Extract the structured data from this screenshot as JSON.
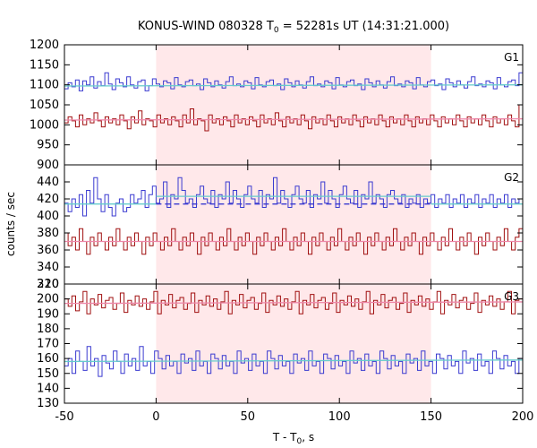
{
  "chart_data": {
    "type": "line",
    "title": "KONUS-WIND 080328 T",
    "title_sub": "0",
    "title_rest": " = 52281s UT (14:31:21.000)",
    "xlabel": "T - T",
    "xlabel_sub": "0",
    "xlabel_rest": ", s",
    "ylabel": "counts / sec",
    "xlim": [
      -50,
      200
    ],
    "x_ticks": [
      -50,
      0,
      50,
      100,
      150,
      200
    ],
    "x_tick_labels": [
      "-50",
      "0",
      "50",
      "100",
      "150",
      "200"
    ],
    "shaded_interval": [
      0,
      150
    ],
    "colors": {
      "blue": "#3a3ad0",
      "red": "#a01010",
      "cyan": "#66cccc",
      "pink": "#ee88aa",
      "shade": "#ffe8ea"
    },
    "panels": [
      {
        "name": "G1",
        "ylim": [
          900,
          1200
        ],
        "y_ticks": [
          900,
          950,
          1000,
          1050,
          1100,
          1150,
          1200
        ],
        "y_tick_labels": [
          "900",
          "950",
          "1000",
          "1050",
          "1100",
          "1150",
          "1200"
        ],
        "series": [
          {
            "name": "G1 upper",
            "color": "blue",
            "background": [
              {
                "x": [
                  -50,
                  200
                ],
                "y": [
                  1097,
                  1100
                ]
              }
            ],
            "values": [
              1090,
              1105,
              1095,
              1112,
              1085,
              1110,
              1100,
              1120,
              1092,
              1108,
              1098,
              1130,
              1102,
              1088,
              1115,
              1105,
              1095,
              1120,
              1100,
              1092,
              1108,
              1112,
              1085,
              1098,
              1115,
              1102,
              1095,
              1110,
              1105,
              1090,
              1118,
              1100,
              1095,
              1108,
              1112,
              1098,
              1102,
              1088,
              1115,
              1105,
              1095,
              1110,
              1100,
              1092,
              1108,
              1120,
              1098,
              1102,
              1095,
              1110,
              1105,
              1090,
              1118,
              1100,
              1095,
              1108,
              1112,
              1098,
              1102,
              1088,
              1115,
              1105,
              1095,
              1110,
              1100,
              1092,
              1108,
              1120,
              1098,
              1102,
              1095,
              1110,
              1105,
              1090,
              1118,
              1100,
              1095,
              1108,
              1112,
              1098,
              1102,
              1088,
              1115,
              1105,
              1095,
              1110,
              1100,
              1092,
              1108,
              1120,
              1098,
              1102,
              1095,
              1110,
              1105,
              1090,
              1118,
              1100,
              1095,
              1108,
              1112,
              1098,
              1102,
              1088,
              1115,
              1105,
              1095,
              1110,
              1100,
              1092,
              1108,
              1120,
              1098,
              1102,
              1095,
              1110,
              1105,
              1090,
              1118,
              1100,
              1095,
              1108,
              1112,
              1098,
              1130
            ]
          },
          {
            "name": "G1 lower",
            "color": "red",
            "background": [
              {
                "x": [
                  -50,
                  200
                ],
                "y": [
                  1012,
                  1015
                ]
              }
            ],
            "values": [
              1005,
              1020,
              1010,
              995,
              1025,
              1000,
              1015,
              1005,
              1030,
              1010,
              995,
              1020,
              1005,
              1015,
              1000,
              1025,
              1010,
              990,
              1020,
              1005,
              1035,
              1000,
              1015,
              1010,
              995,
              1025,
              1005,
              1015,
              1000,
              1020,
              1010,
              995,
              1025,
              1005,
              1040,
              1000,
              1015,
              1010,
              985,
              1025,
              1005,
              1015,
              1000,
              1020,
              1010,
              995,
              1025,
              1005,
              1015,
              1000,
              1020,
              1010,
              995,
              1025,
              1005,
              1015,
              1000,
              1030,
              1010,
              995,
              1020,
              1005,
              1015,
              1000,
              1025,
              1010,
              990,
              1020,
              1005,
              1015,
              1000,
              1025,
              1010,
              995,
              1020,
              1005,
              1015,
              1000,
              1025,
              1010,
              995,
              1020,
              1005,
              1015,
              1000,
              1025,
              1010,
              995,
              1020,
              1005,
              1015,
              1000,
              1025,
              1010,
              995,
              1020,
              1005,
              1015,
              1000,
              1025,
              1010,
              995,
              1020,
              1005,
              1015,
              1000,
              1025,
              1010,
              995,
              1020,
              1005,
              1015,
              1000,
              1025,
              1010,
              995,
              1020,
              1005,
              1015,
              1000,
              1025,
              1010,
              995,
              1050
            ]
          }
        ]
      },
      {
        "name": "G2",
        "ylim": [
          320,
          460
        ],
        "y_ticks": [
          320,
          340,
          360,
          380,
          400,
          420,
          440
        ],
        "y_tick_labels": [
          "320",
          "340",
          "360",
          "380",
          "400",
          "420",
          "440"
        ],
        "series": [
          {
            "name": "G2 upper",
            "color": "blue",
            "background": [
              {
                "x": [
                  -50,
                  0
                ],
                "y": [
                  414,
                  414
                ]
              },
              {
                "x": [
                  0,
                  150
                ],
                "y": [
                  423,
                  423
                ]
              },
              {
                "x": [
                  150,
                  200
                ],
                "y": [
                  414,
                  414
                ]
              }
            ],
            "dashed_background": [
              {
                "x": [
                  0,
                  150
                ],
                "y": [
                  414,
                  414
                ]
              }
            ],
            "values": [
              415,
              405,
              420,
              410,
              425,
              400,
              430,
              415,
              445,
              420,
              405,
              425,
              410,
              400,
              415,
              420,
              405,
              410,
              425,
              415,
              420,
              430,
              410,
              425,
              435,
              415,
              420,
              440,
              410,
              425,
              420,
              445,
              430,
              415,
              420,
              410,
              425,
              435,
              420,
              415,
              430,
              410,
              425,
              420,
              440,
              415,
              430,
              420,
              410,
              425,
              435,
              420,
              415,
              430,
              410,
              425,
              420,
              445,
              415,
              430,
              420,
              410,
              425,
              435,
              420,
              415,
              430,
              410,
              425,
              420,
              440,
              415,
              430,
              420,
              410,
              425,
              435,
              420,
              415,
              430,
              410,
              425,
              420,
              440,
              415,
              425,
              420,
              410,
              425,
              430,
              420,
              415,
              425,
              410,
              420,
              415,
              425,
              410,
              420,
              415,
              425,
              410,
              420,
              415,
              425,
              410,
              420,
              415,
              425,
              410,
              420,
              415,
              425,
              410,
              420,
              415,
              425,
              410,
              420,
              415,
              425,
              410,
              420,
              415,
              420
            ]
          },
          {
            "name": "G2 lower",
            "color": "red",
            "background": [
              {
                "x": [
                  -50,
                  200
                ],
                "y": [
                  370,
                  370
                ]
              }
            ],
            "values": [
              380,
              365,
              375,
              360,
              385,
              370,
              355,
              375,
              365,
              380,
              370,
              360,
              375,
              365,
              385,
              370,
              360,
              375,
              365,
              380,
              370,
              355,
              375,
              365,
              380,
              370,
              360,
              375,
              365,
              385,
              370,
              360,
              375,
              365,
              380,
              370,
              355,
              375,
              365,
              380,
              370,
              360,
              375,
              365,
              385,
              370,
              360,
              375,
              365,
              380,
              370,
              355,
              375,
              365,
              380,
              370,
              360,
              375,
              365,
              385,
              370,
              360,
              375,
              365,
              380,
              370,
              355,
              375,
              365,
              380,
              370,
              360,
              375,
              365,
              385,
              370,
              360,
              375,
              365,
              380,
              370,
              355,
              375,
              365,
              380,
              370,
              360,
              375,
              365,
              385,
              370,
              360,
              375,
              365,
              380,
              370,
              355,
              375,
              365,
              380,
              370,
              360,
              375,
              365,
              385,
              370,
              360,
              375,
              365,
              380,
              370,
              355,
              375,
              365,
              380,
              370,
              360,
              375,
              365,
              385,
              370,
              360,
              375,
              385
            ]
          }
        ]
      },
      {
        "name": "G3",
        "ylim": [
          130,
          210
        ],
        "y_ticks": [
          130,
          140,
          150,
          160,
          170,
          180,
          190,
          200,
          210
        ],
        "y_tick_labels": [
          "130",
          "140",
          "150",
          "160",
          "170",
          "180",
          "190",
          "200",
          "210"
        ],
        "series": [
          {
            "name": "G3 upper",
            "color": "red",
            "background": [
              {
                "x": [
                  -50,
                  200
                ],
                "y": [
                  197,
                  198
                ]
              }
            ],
            "values": [
              200,
              195,
              202,
              192,
              198,
              205,
              190,
              200,
              196,
              203,
              194,
              199,
              201,
              193,
              197,
              204,
              191,
              199,
              196,
              202,
              195,
              200,
              193,
              198,
              205,
              190,
              199,
              196,
              203,
              194,
              199,
              201,
              193,
              197,
              204,
              191,
              199,
              196,
              202,
              195,
              200,
              193,
              198,
              205,
              190,
              199,
              196,
              203,
              194,
              199,
              201,
              193,
              197,
              204,
              191,
              199,
              196,
              202,
              195,
              200,
              193,
              198,
              205,
              190,
              199,
              196,
              203,
              194,
              199,
              201,
              193,
              197,
              204,
              191,
              199,
              196,
              202,
              195,
              200,
              193,
              198,
              205,
              190,
              199,
              196,
              203,
              194,
              199,
              201,
              193,
              197,
              204,
              191,
              199,
              196,
              202,
              195,
              200,
              193,
              198,
              205,
              190,
              199,
              196,
              203,
              194,
              199,
              201,
              193,
              197,
              204,
              191,
              199,
              196,
              202,
              195,
              200,
              193,
              198,
              205,
              190,
              199,
              200
            ]
          },
          {
            "name": "G3 lower",
            "color": "blue",
            "background": [
              {
                "x": [
                  -50,
                  200
                ],
                "y": [
                  158,
                  159
                ]
              }
            ],
            "values": [
              155,
              160,
              150,
              165,
              158,
              152,
              168,
              155,
              160,
              148,
              162,
              157,
              153,
              165,
              158,
              150,
              163,
              155,
              160,
              152,
              168,
              155,
              158,
              150,
              165,
              160,
              153,
              162,
              155,
              158,
              150,
              163,
              157,
              160,
              152,
              165,
              155,
              158,
              150,
              163,
              160,
              153,
              162,
              155,
              158,
              150,
              165,
              157,
              160,
              152,
              163,
              155,
              158,
              150,
              165,
              160,
              153,
              162,
              155,
              158,
              150,
              163,
              157,
              160,
              152,
              165,
              155,
              158,
              150,
              163,
              160,
              153,
              162,
              155,
              158,
              150,
              165,
              157,
              160,
              152,
              163,
              155,
              158,
              150,
              165,
              160,
              153,
              162,
              155,
              158,
              150,
              163,
              157,
              160,
              152,
              165,
              155,
              158,
              150,
              163,
              160,
              153,
              162,
              155,
              158,
              150,
              165,
              157,
              160,
              152,
              163,
              155,
              158,
              150,
              165,
              160,
              153,
              162,
              155,
              158,
              150,
              160
            ]
          }
        ]
      }
    ]
  }
}
